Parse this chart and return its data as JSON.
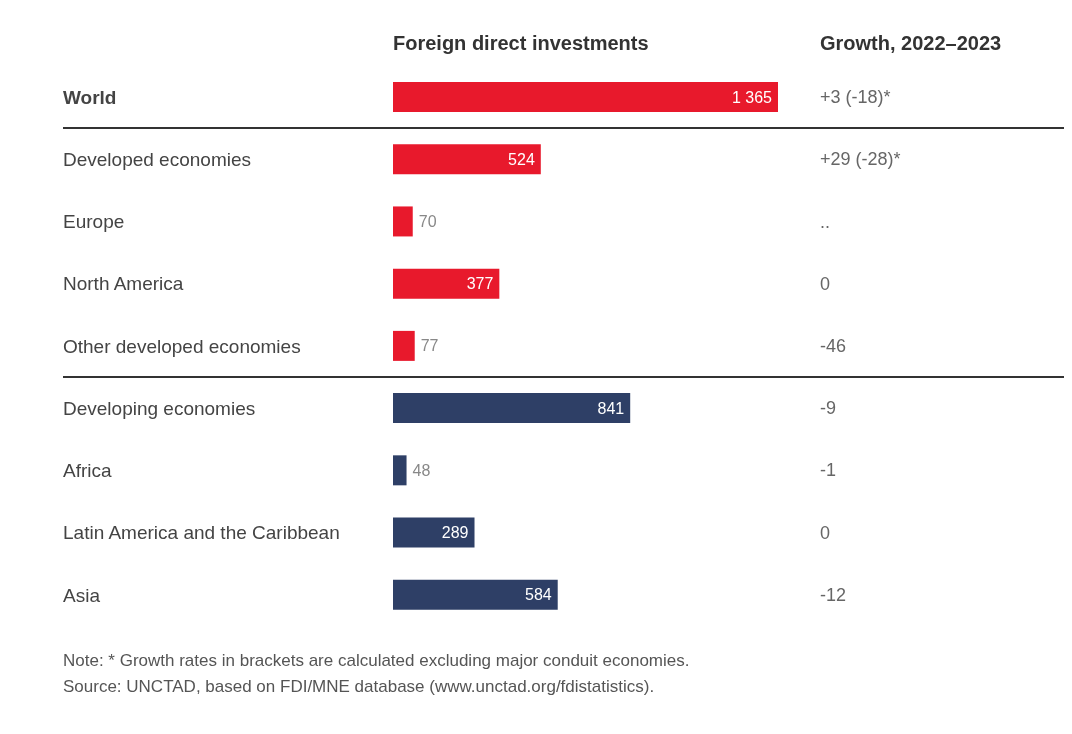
{
  "chart_data": {
    "type": "bar",
    "orientation": "horizontal",
    "title": "Foreign direct investments",
    "categories": [
      "World",
      "Developed economies",
      "Europe",
      "North America",
      "Other developed economies",
      "Developing economies",
      "Africa",
      "Latin America and the Caribbean",
      "Asia"
    ],
    "values": [
      1365,
      524,
      70,
      377,
      77,
      841,
      48,
      289,
      584
    ],
    "colors": [
      "#e8192c",
      "#e8192c",
      "#e8192c",
      "#e8192c",
      "#e8192c",
      "#2e3f66",
      "#2e3f66",
      "#2e3f66",
      "#2e3f66"
    ],
    "data_labels": true,
    "value_labels": [
      "1 365",
      "524",
      "70",
      "377",
      "77",
      "841",
      "48",
      "289",
      "584"
    ],
    "annotations": [
      "Growth, 2022–2023",
      "+3 (-18)*",
      "+29 (-28)*",
      "..",
      "0",
      "-46",
      "-9",
      "-1",
      "0",
      "-12",
      "Note: * Growth rates in brackets are calculated excluding major conduit economies.",
      "Source: UNCTAD, based on FDI/MNE database (www.unctad.org/fdistatistics)."
    ]
  }
}
